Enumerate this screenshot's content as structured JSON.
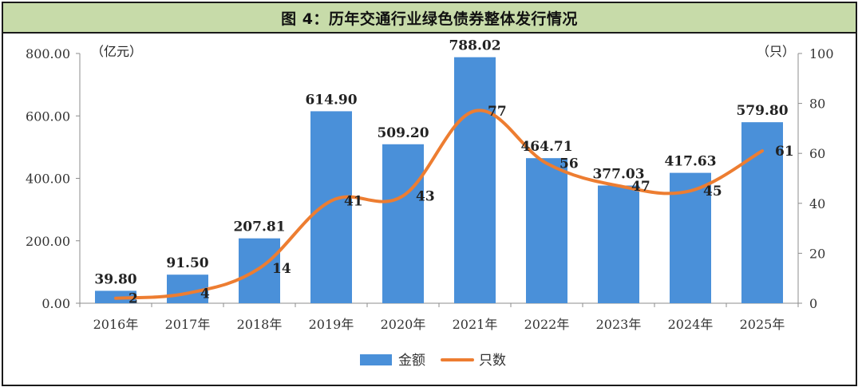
{
  "title": "图 4：历年交通行业绿色债券整体发行情况",
  "chart_data": {
    "type": "bar+line",
    "categories": [
      "2016年",
      "2017年",
      "2018年",
      "2019年",
      "2020年",
      "2021年",
      "2022年",
      "2023年",
      "2024年",
      "2025年"
    ],
    "series": [
      {
        "name": "金额",
        "type": "bar",
        "axis": "left",
        "color": "#4a90d9",
        "values": [
          39.8,
          91.5,
          207.81,
          614.9,
          509.2,
          788.02,
          464.71,
          377.03,
          417.63,
          579.8
        ],
        "labels": [
          "39.80",
          "91.50",
          "207.81",
          "614.90",
          "509.20",
          "788.02",
          "464.71",
          "377.03",
          "417.63",
          "579.80"
        ]
      },
      {
        "name": "只数",
        "type": "line",
        "axis": "right",
        "color": "#ed7d31",
        "values": [
          2,
          4,
          14,
          41,
          43,
          77,
          56,
          47,
          45,
          61
        ],
        "labels": [
          "2",
          "4",
          "14",
          "41",
          "43",
          "77",
          "56",
          "47",
          "45",
          "61"
        ]
      }
    ],
    "y_left": {
      "unit": "（亿元）",
      "ylim": [
        0,
        800
      ],
      "ticks": [
        "0.00",
        "200.00",
        "400.00",
        "600.00",
        "800.00"
      ],
      "tick_values": [
        0,
        200,
        400,
        600,
        800
      ]
    },
    "y_right": {
      "unit": "（只）",
      "ylim": [
        0,
        100
      ],
      "ticks": [
        "0",
        "20",
        "40",
        "60",
        "80",
        "100"
      ],
      "tick_values": [
        0,
        20,
        40,
        60,
        80,
        100
      ]
    },
    "grid": false,
    "legend": "bottom-center"
  }
}
